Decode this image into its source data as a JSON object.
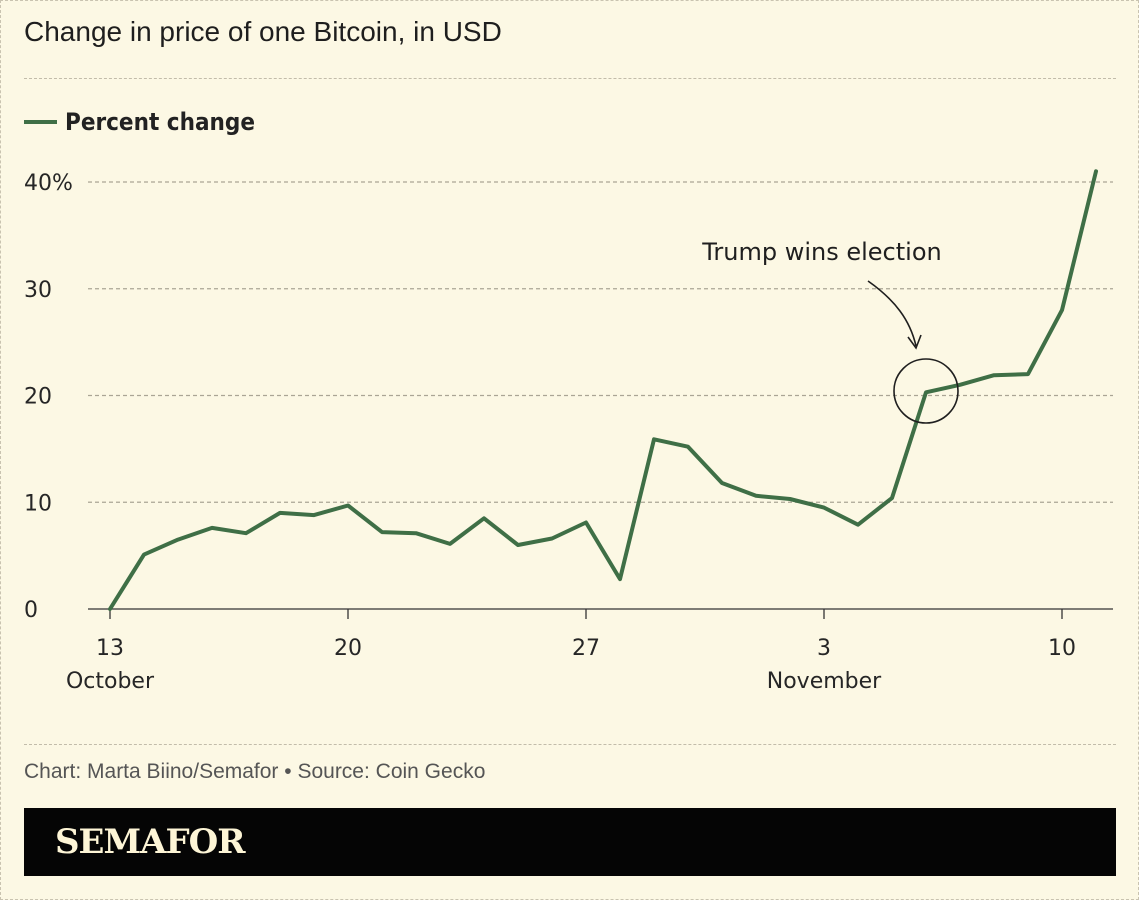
{
  "title": "Change in price of one Bitcoin, in USD",
  "legend": {
    "label": "Percent change",
    "color": "#3f6f46"
  },
  "credit": "Chart: Marta Biino/Semafor • Source: Coin Gecko",
  "brand": "SEMAFOR",
  "annotation": {
    "text": "Trump wins election",
    "day_index": 23
  },
  "chart_data": {
    "type": "line",
    "title": "Change in price of one Bitcoin, in USD",
    "xlabel": "",
    "ylabel": "",
    "ylim": [
      0,
      40
    ],
    "y_ticks": [
      0,
      10,
      20,
      30,
      40
    ],
    "y_tick_labels": [
      "0",
      "10",
      "20",
      "30",
      "40%"
    ],
    "x_ticks": [
      {
        "day_index": 0,
        "label": "13",
        "month": "October"
      },
      {
        "day_index": 7,
        "label": "20",
        "month": ""
      },
      {
        "day_index": 14,
        "label": "27",
        "month": ""
      },
      {
        "day_index": 21,
        "label": "3",
        "month": "November"
      },
      {
        "day_index": 28,
        "label": "10",
        "month": ""
      }
    ],
    "series": [
      {
        "name": "Percent change",
        "color": "#3f6f46",
        "x": [
          0,
          1,
          2,
          3,
          4,
          5,
          6,
          7,
          8,
          9,
          10,
          11,
          12,
          13,
          14,
          15,
          16,
          17,
          18,
          19,
          20,
          21,
          22,
          23,
          24,
          25,
          26,
          27,
          28,
          29
        ],
        "values": [
          0,
          5.1,
          6.5,
          7.6,
          7.1,
          9.0,
          8.8,
          9.7,
          7.2,
          7.1,
          6.1,
          8.5,
          6.0,
          6.6,
          8.1,
          2.8,
          15.9,
          15.2,
          11.8,
          10.6,
          10.3,
          9.5,
          7.9,
          10.4,
          20.3,
          21.0,
          21.9,
          22.0,
          28.0,
          41.0
        ]
      }
    ],
    "grid": true,
    "legend_position": "top-left"
  }
}
